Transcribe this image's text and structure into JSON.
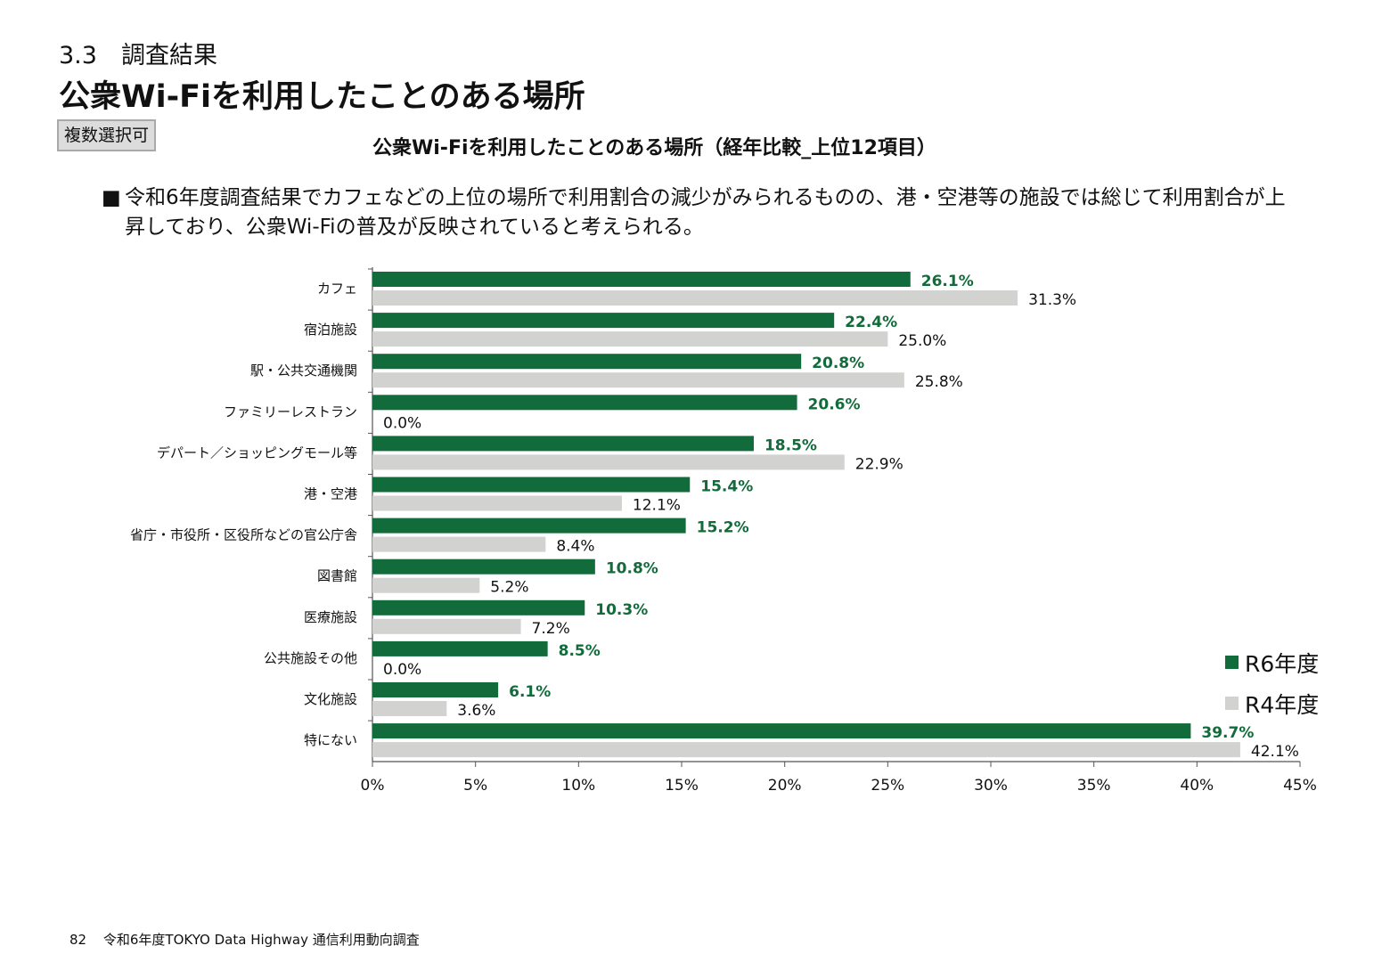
{
  "header": {
    "section": "3.3　調査結果",
    "title": "公衆Wi-Fiを利用したことのある場所",
    "badge": "複数選択可"
  },
  "summary": {
    "bullet": "■",
    "text": "令和6年度調査結果でカフェなどの上位の場所で利用割合の減少がみられるものの、港・空港等の施設では総じて利用割合が上昇しており、公衆Wi-Fiの普及が反映されていると考えられる。"
  },
  "chart_data": {
    "type": "bar",
    "orientation": "horizontal",
    "title": "公衆Wi-Fiを利用したことのある場所（経年比較_上位12項目）",
    "categories": [
      "カフェ",
      "宿泊施設",
      "駅・公共交通機関",
      "ファミリーレストラン",
      "デパート／ショッピングモール等",
      "港・空港",
      "省庁・市役所・区役所などの官公庁舎",
      "図書館",
      "医療施設",
      "公共施設その他",
      "文化施設",
      "特にない"
    ],
    "series": [
      {
        "name": "R6年度",
        "color": "#116b3a",
        "values": [
          26.1,
          22.4,
          20.8,
          20.6,
          18.5,
          15.4,
          15.2,
          10.8,
          10.3,
          8.5,
          6.1,
          39.7
        ],
        "labels": [
          "26.1%",
          "22.4%",
          "20.8%",
          "20.6%",
          "18.5%",
          "15.4%",
          "15.2%",
          "10.8%",
          "10.3%",
          "8.5%",
          "6.1%",
          "39.7%"
        ]
      },
      {
        "name": "R4年度",
        "color": "#d2d2d0",
        "values": [
          31.3,
          25.0,
          25.8,
          0.0,
          22.9,
          12.1,
          8.4,
          5.2,
          7.2,
          0.0,
          3.6,
          42.1
        ],
        "labels": [
          "31.3%",
          "25.0%",
          "25.8%",
          "0.0%",
          "22.9%",
          "12.1%",
          "8.4%",
          "5.2%",
          "7.2%",
          "0.0%",
          "3.6%",
          "42.1%"
        ]
      }
    ],
    "xlim": [
      0,
      45
    ],
    "xticks": [
      0,
      5,
      10,
      15,
      20,
      25,
      30,
      35,
      40,
      45
    ],
    "xtick_labels": [
      "0%",
      "5%",
      "10%",
      "15%",
      "20%",
      "25%",
      "30%",
      "35%",
      "40%",
      "45%"
    ],
    "grid": false,
    "legend": "bottom-right"
  },
  "footer": {
    "page": "82",
    "text": "令和6年度TOKYO Data Highway 通信利用動向調査"
  }
}
